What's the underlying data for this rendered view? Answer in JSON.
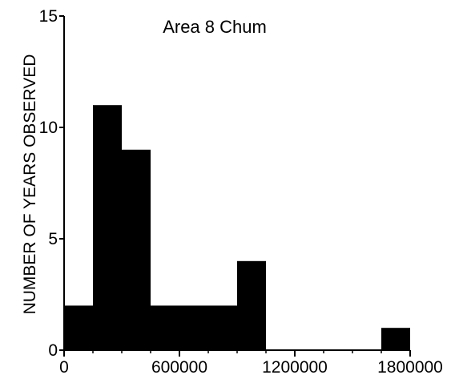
{
  "chart_data": {
    "type": "bar",
    "title": "Area 8 Chum",
    "ylabel": "NUMBER OF YEARS OBSERVED",
    "xlabel": "",
    "xlim": [
      0,
      1800000
    ],
    "ylim": [
      0,
      15
    ],
    "x_ticks": [
      0,
      600000,
      1200000,
      1800000
    ],
    "x_tick_labels": [
      "0",
      "600000",
      "1200000",
      "1800000"
    ],
    "x_minor_step": 150000,
    "y_ticks": [
      0,
      5,
      10,
      15
    ],
    "y_tick_labels": [
      "0",
      "5",
      "10",
      "15"
    ],
    "bins": [
      {
        "x0": 0,
        "x1": 150000,
        "count": 2
      },
      {
        "x0": 150000,
        "x1": 300000,
        "count": 11
      },
      {
        "x0": 300000,
        "x1": 450000,
        "count": 9
      },
      {
        "x0": 450000,
        "x1": 600000,
        "count": 2
      },
      {
        "x0": 600000,
        "x1": 750000,
        "count": 2
      },
      {
        "x0": 750000,
        "x1": 900000,
        "count": 2
      },
      {
        "x0": 900000,
        "x1": 1050000,
        "count": 4
      },
      {
        "x0": 1050000,
        "x1": 1200000,
        "count": 0
      },
      {
        "x0": 1200000,
        "x1": 1350000,
        "count": 0
      },
      {
        "x0": 1350000,
        "x1": 1500000,
        "count": 0
      },
      {
        "x0": 1500000,
        "x1": 1650000,
        "count": 0
      },
      {
        "x0": 1650000,
        "x1": 1800000,
        "count": 1
      }
    ],
    "bar_color": "#000000",
    "grid": false,
    "legend": "none"
  }
}
